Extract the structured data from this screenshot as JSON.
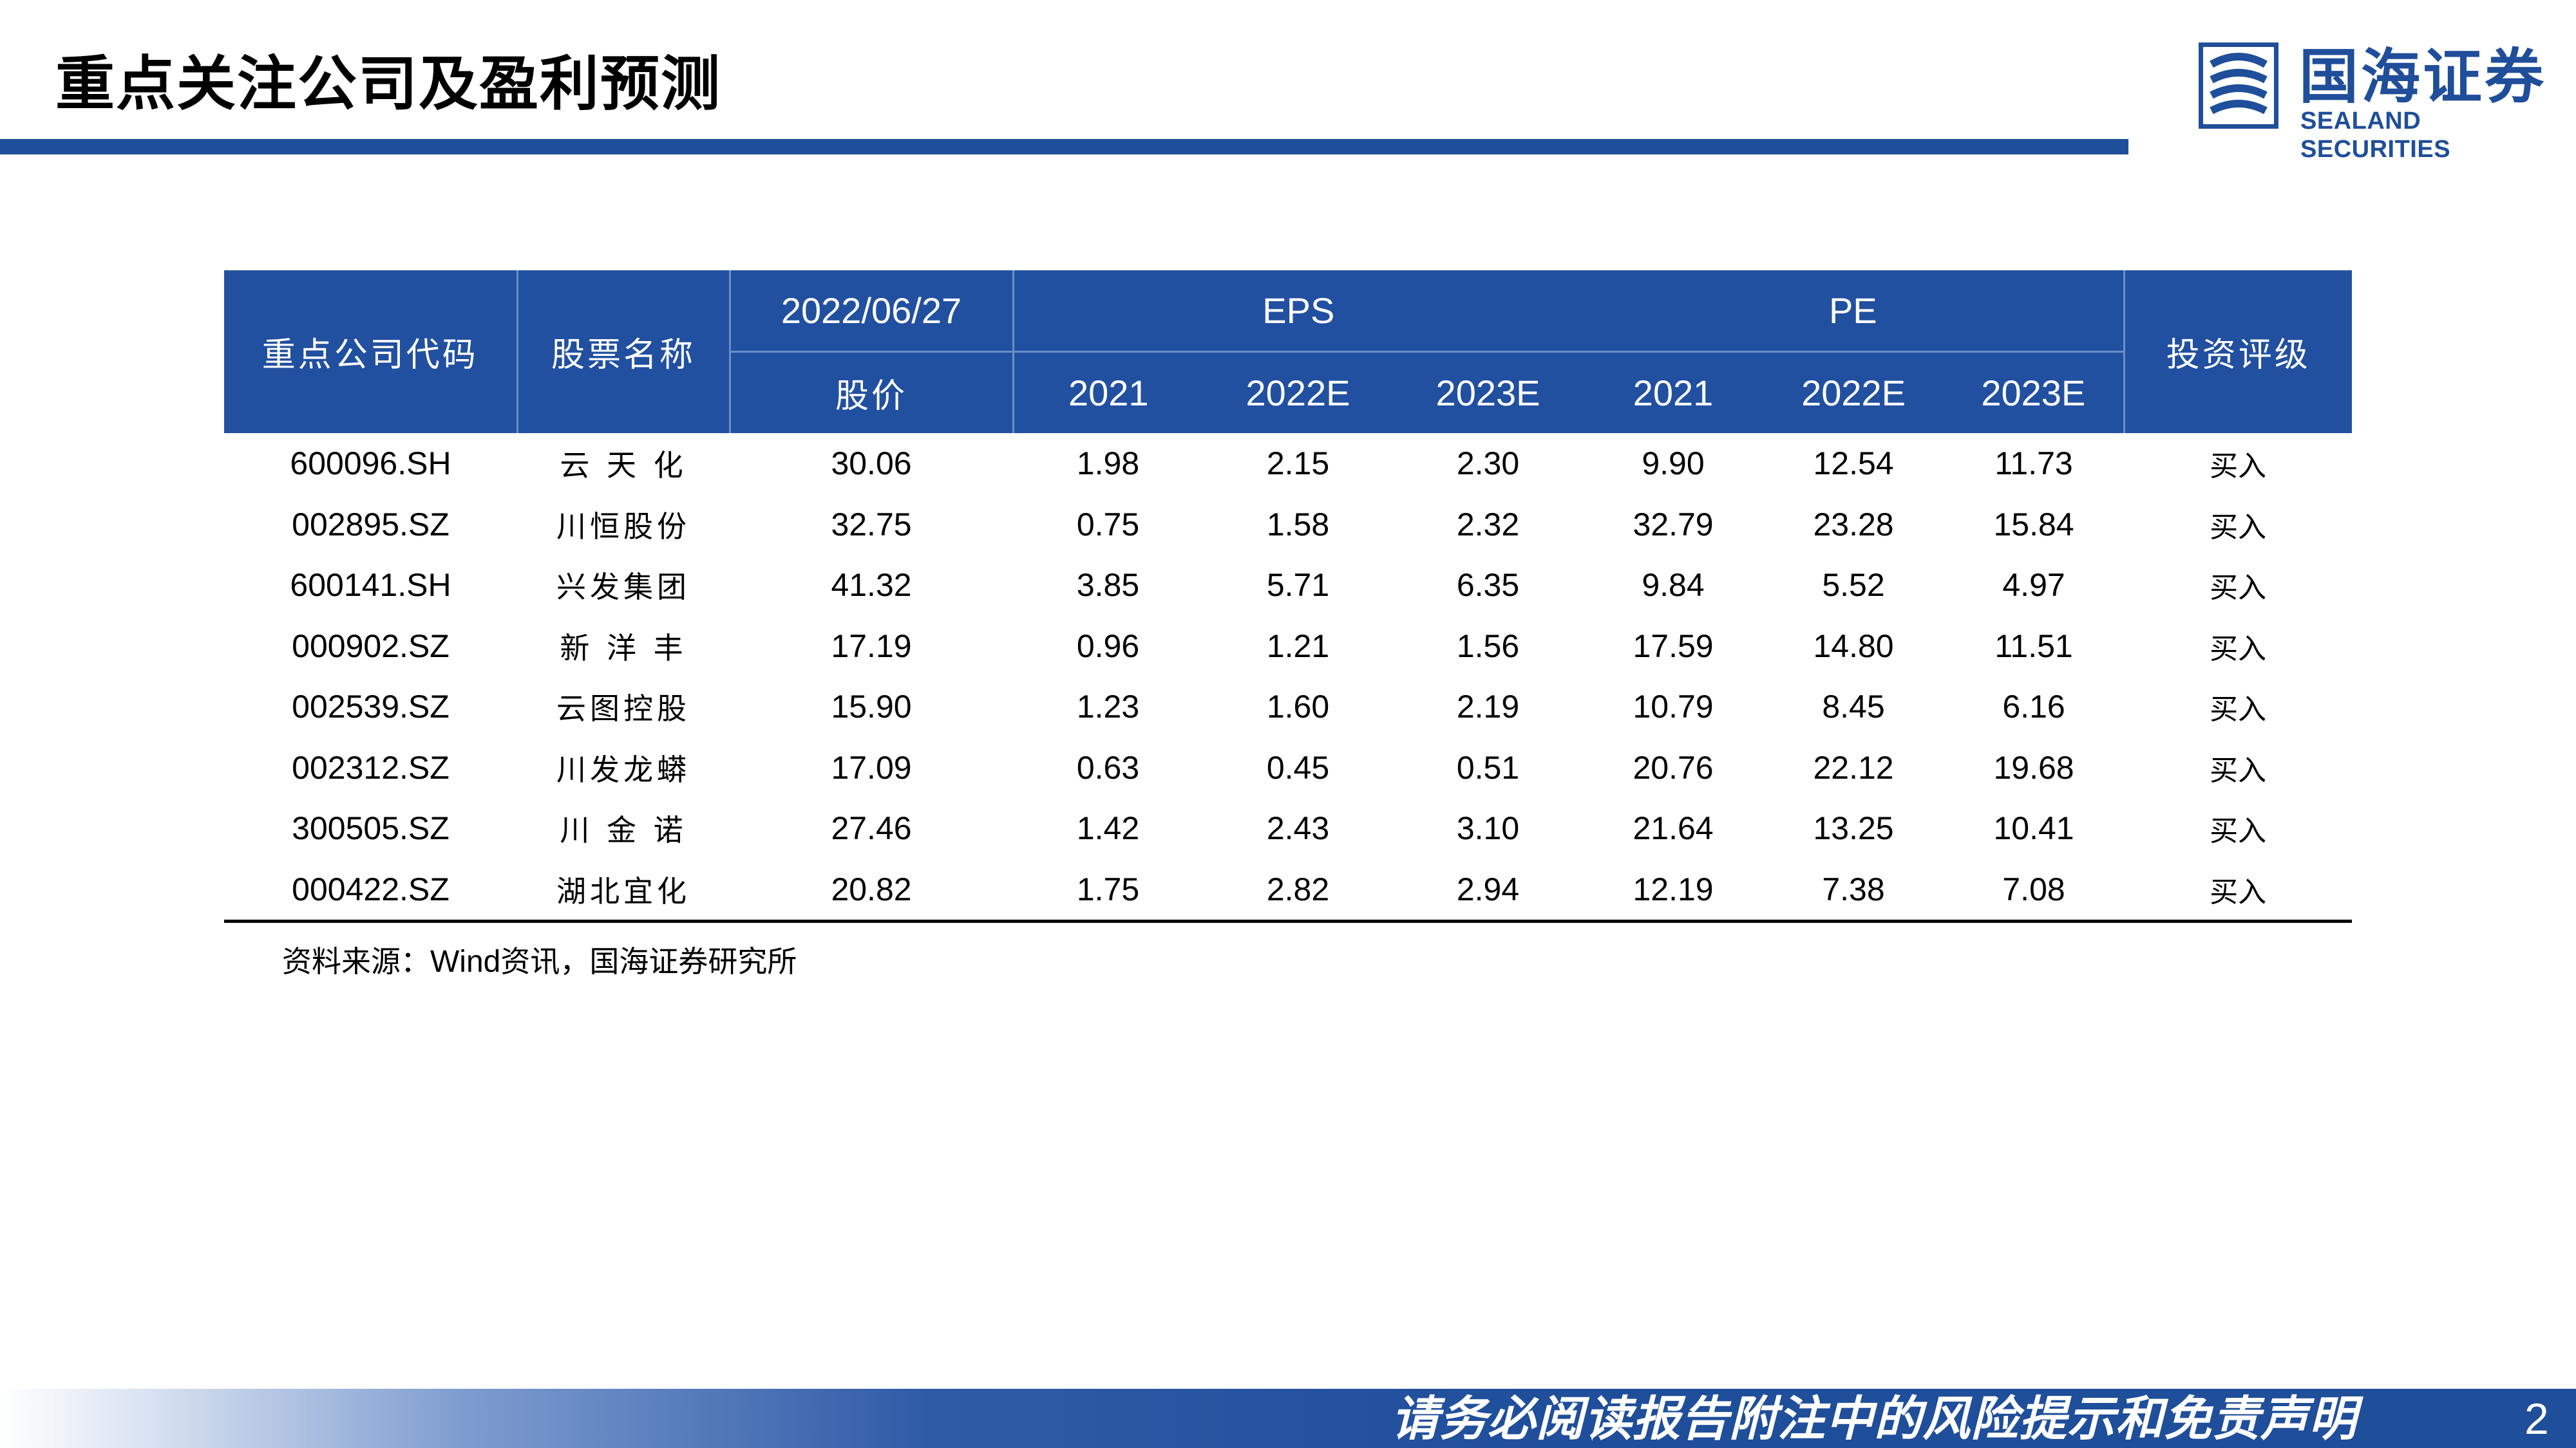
{
  "page": {
    "title": "重点关注公司及盈利预测",
    "page_number": "2",
    "footer_disclaimer": "请务必阅读报告附注中的风险提示和免责声明",
    "colors": {
      "brand_blue": "#1f4e9a",
      "header_fill": "#2250a0"
    }
  },
  "logo": {
    "cn": "国海证券",
    "en": "SEALAND SECURITIES"
  },
  "table": {
    "headers": {
      "code": "重点公司代码",
      "name": "股票名称",
      "date": "2022/06/27",
      "price": "股价",
      "eps": "EPS",
      "pe": "PE",
      "rating": "投资评级",
      "eps_years": [
        "2021",
        "2022E",
        "2023E"
      ],
      "pe_years": [
        "2021",
        "2022E",
        "2023E"
      ]
    },
    "rows": [
      {
        "code": "600096.SH",
        "name": "云 天 化",
        "price": "30.06",
        "eps_2021": "1.98",
        "eps_2022e": "2.15",
        "eps_2023e": "2.30",
        "pe_2021": "9.90",
        "pe_2022e": "12.54",
        "pe_2023e": "11.73",
        "rating": "买入"
      },
      {
        "code": "002895.SZ",
        "name": "川恒股份",
        "price": "32.75",
        "eps_2021": "0.75",
        "eps_2022e": "1.58",
        "eps_2023e": "2.32",
        "pe_2021": "32.79",
        "pe_2022e": "23.28",
        "pe_2023e": "15.84",
        "rating": "买入"
      },
      {
        "code": "600141.SH",
        "name": "兴发集团",
        "price": "41.32",
        "eps_2021": "3.85",
        "eps_2022e": "5.71",
        "eps_2023e": "6.35",
        "pe_2021": "9.84",
        "pe_2022e": "5.52",
        "pe_2023e": "4.97",
        "rating": "买入"
      },
      {
        "code": "000902.SZ",
        "name": "新 洋 丰",
        "price": "17.19",
        "eps_2021": "0.96",
        "eps_2022e": "1.21",
        "eps_2023e": "1.56",
        "pe_2021": "17.59",
        "pe_2022e": "14.80",
        "pe_2023e": "11.51",
        "rating": "买入"
      },
      {
        "code": "002539.SZ",
        "name": "云图控股",
        "price": "15.90",
        "eps_2021": "1.23",
        "eps_2022e": "1.60",
        "eps_2023e": "2.19",
        "pe_2021": "10.79",
        "pe_2022e": "8.45",
        "pe_2023e": "6.16",
        "rating": "买入"
      },
      {
        "code": "002312.SZ",
        "name": "川发龙蟒",
        "price": "17.09",
        "eps_2021": "0.63",
        "eps_2022e": "0.45",
        "eps_2023e": "0.51",
        "pe_2021": "20.76",
        "pe_2022e": "22.12",
        "pe_2023e": "19.68",
        "rating": "买入"
      },
      {
        "code": "300505.SZ",
        "name": "川 金 诺",
        "price": "27.46",
        "eps_2021": "1.42",
        "eps_2022e": "2.43",
        "eps_2023e": "3.10",
        "pe_2021": "21.64",
        "pe_2022e": "13.25",
        "pe_2023e": "10.41",
        "rating": "买入"
      },
      {
        "code": "000422.SZ",
        "name": "湖北宜化",
        "price": "20.82",
        "eps_2021": "1.75",
        "eps_2022e": "2.82",
        "eps_2023e": "2.94",
        "pe_2021": "12.19",
        "pe_2022e": "7.38",
        "pe_2023e": "7.08",
        "rating": "买入"
      }
    ]
  },
  "source": {
    "prefix": "资料来源：",
    "wind": "Wind",
    "suffix": "资讯，国海证券研究所"
  }
}
